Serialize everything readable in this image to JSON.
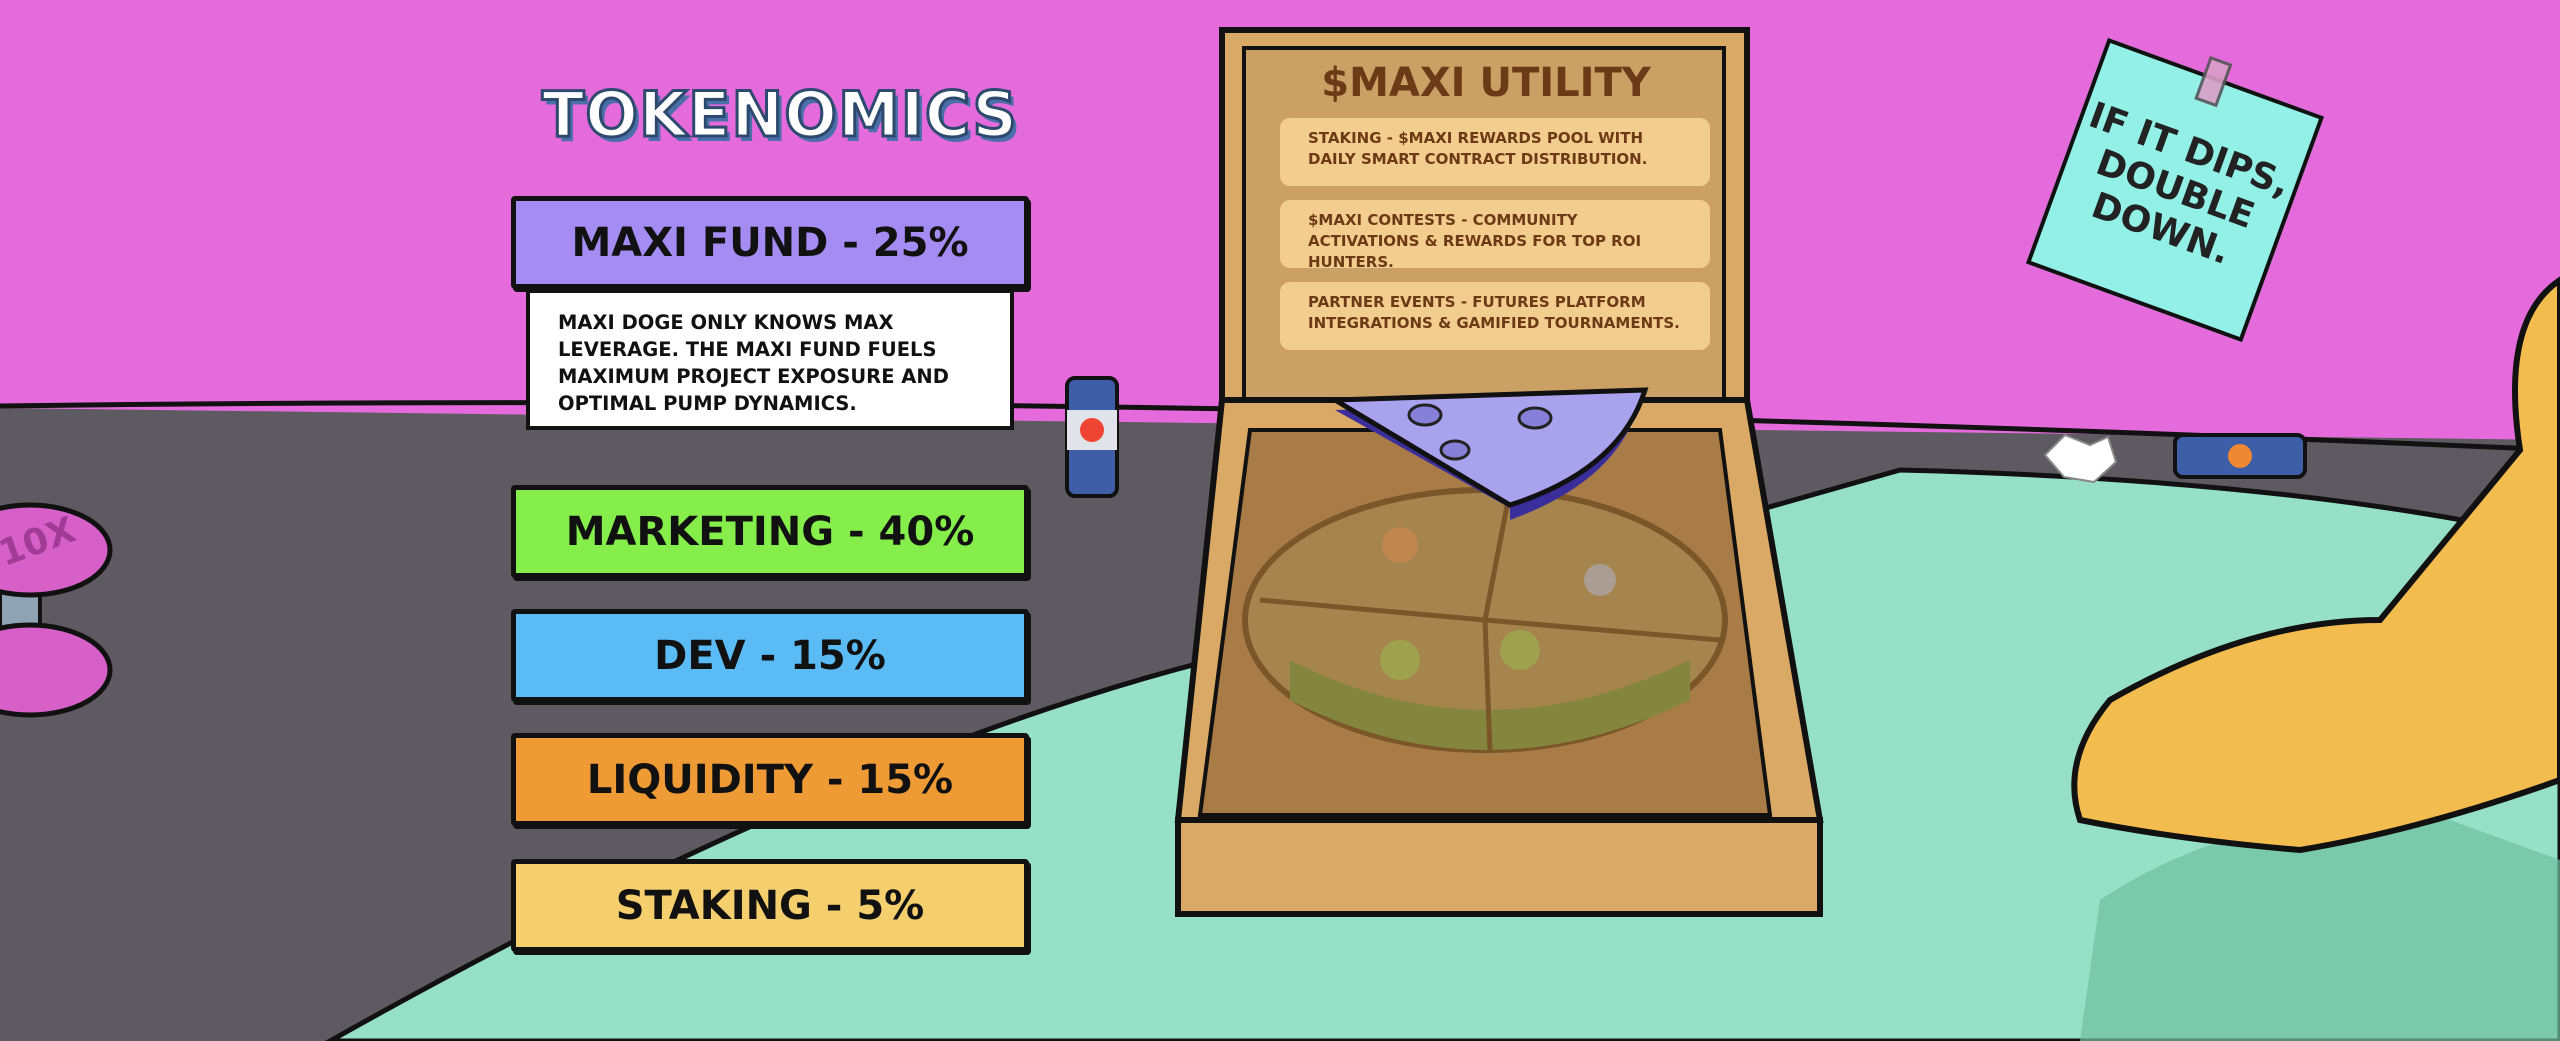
{
  "tokenomics": {
    "title": "TOKENOMICS",
    "allocations": [
      {
        "label": "MAXI FUND - 25%",
        "name": "MAXI FUND",
        "percent": 25,
        "color": "#a48cf2"
      },
      {
        "label": "MARKETING - 40%",
        "name": "MARKETING",
        "percent": 40,
        "color": "#86ee4a"
      },
      {
        "label": "DEV - 15%",
        "name": "DEV",
        "percent": 15,
        "color": "#5bbcf5"
      },
      {
        "label": "LIQUIDITY - 15%",
        "name": "LIQUIDITY",
        "percent": 15,
        "color": "#ee9a35"
      },
      {
        "label": "STAKING - 5%",
        "name": "STAKING",
        "percent": 5,
        "color": "#f5cf6d"
      }
    ],
    "maxi_fund_description": "MAXI DOGE ONLY KNOWS MAX LEVERAGE. THE MAXI FUND FUELS MAXIMUM PROJECT EXPOSURE AND OPTIMAL PUMP DYNAMICS."
  },
  "utility": {
    "title": "$MAXI UTILITY",
    "items": [
      "STAKING - $MAXI REWARDS POOL WITH DAILY SMART CONTRACT DISTRIBUTION.",
      "$MAXI CONTESTS - COMMUNITY ACTIVATIONS & REWARDS FOR TOP ROI HUNTERS.",
      "PARTNER EVENTS - FUTURES PLATFORM INTEGRATIONS & GAMIFIED TOURNAMENTS."
    ]
  },
  "note": {
    "text": "IF IT DIPS, DOUBLE DOWN."
  },
  "dumbbell": {
    "text": "10X"
  },
  "colors": {
    "wall": "#e56bdc",
    "floor": "#5d5a62",
    "table": "#96e0c8",
    "box": "#d9a965"
  }
}
